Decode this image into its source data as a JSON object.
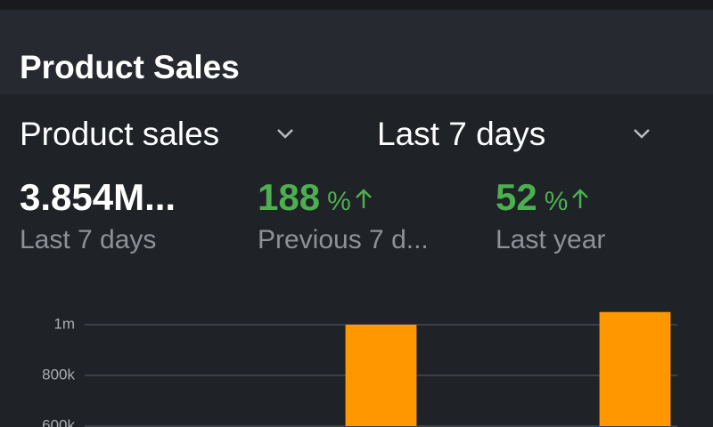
{
  "header": {
    "title": "Product Sales"
  },
  "filters": [
    {
      "label": "Product sales"
    },
    {
      "label": "Last 7 days"
    }
  ],
  "metrics": [
    {
      "value": "3.854M...",
      "label": "Last 7 days"
    },
    {
      "value": 188,
      "unit": "%",
      "label": "Previous 7 d..."
    },
    {
      "value": 52,
      "unit": "%",
      "label": "Last year"
    }
  ],
  "chart_data": {
    "type": "bar",
    "categories": [
      null,
      null,
      null,
      null,
      null,
      null,
      null
    ],
    "values": [
      null,
      null,
      null,
      1000000,
      null,
      null,
      1050000
    ],
    "color": "#ff9800",
    "ylim": [
      600000,
      1100000
    ],
    "yticks": [
      {
        "value": 600000,
        "label": "600k"
      },
      {
        "value": 800000,
        "label": "800k"
      },
      {
        "value": 1000000,
        "label": "1m"
      }
    ],
    "grid": true
  }
}
